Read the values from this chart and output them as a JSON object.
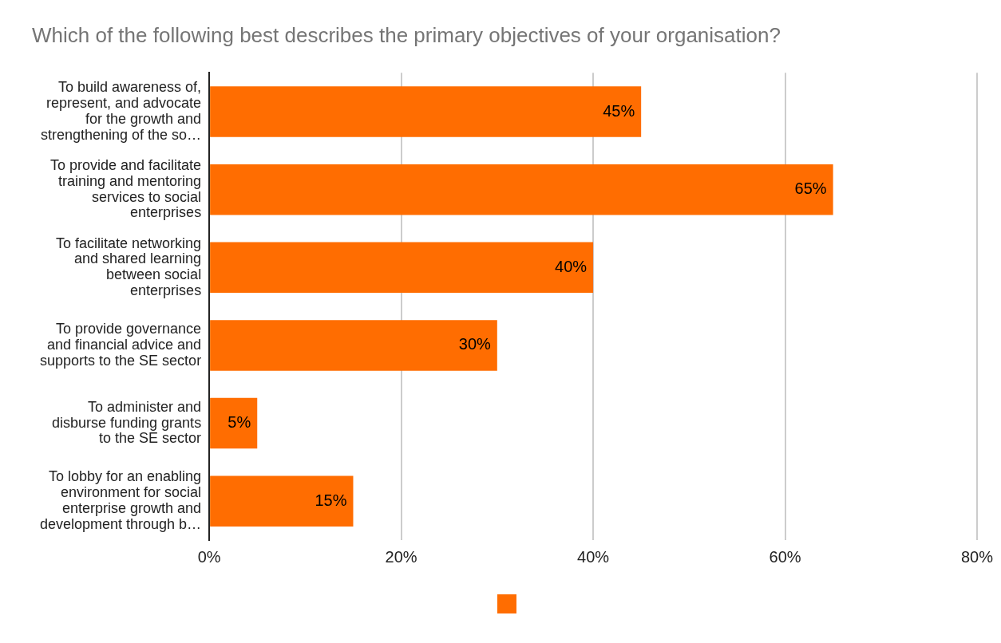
{
  "chart_data": {
    "type": "bar",
    "orientation": "horizontal",
    "title": "Which of the following best describes the primary objectives of your organisation?",
    "categories": [
      "To build awareness of, represent, and advocate for the growth and strengthening of the so…",
      "To provide and facilitate training and mentoring services to social enterprises",
      "To facilitate networking and shared learning between social enterprises",
      "To provide governance and financial advice and supports to the SE sector",
      "To administer and disburse funding grants to the SE sector",
      "To lobby for an enabling environment for social enterprise growth and development through b…"
    ],
    "values": [
      45,
      65,
      40,
      30,
      5,
      15
    ],
    "value_labels": [
      "45%",
      "65%",
      "40%",
      "30%",
      "5%",
      "15%"
    ],
    "color": "#ff6d01",
    "xlim": [
      0,
      80
    ],
    "xticks": [
      {
        "value": 0,
        "label": "0%"
      },
      {
        "value": 20,
        "label": "20%"
      },
      {
        "value": 40,
        "label": "40%"
      },
      {
        "value": 60,
        "label": "60%"
      },
      {
        "value": 80,
        "label": "80%"
      }
    ],
    "grid": "x"
  }
}
